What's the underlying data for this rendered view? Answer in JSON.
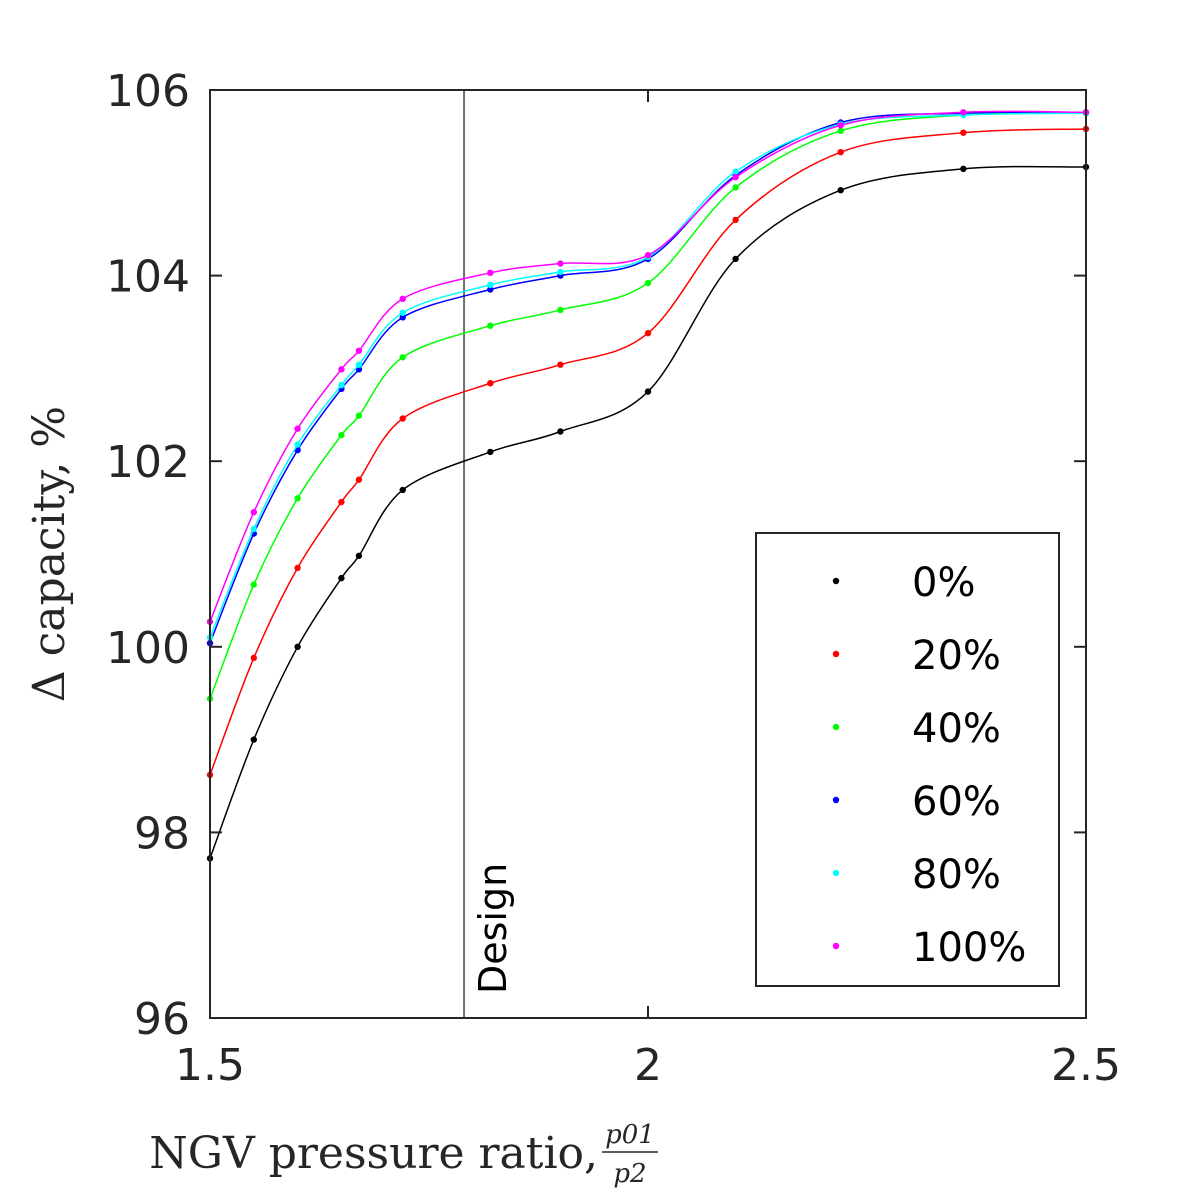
{
  "chart_data": {
    "type": "line",
    "title": "",
    "xlabel": "NGV pressure ratio,",
    "xlabel_fraction": {
      "numerator": "p01",
      "denominator": "p2"
    },
    "ylabel": "Δ capacity, %",
    "xlim": [
      1.5,
      2.5
    ],
    "ylim": [
      96,
      106
    ],
    "x_ticks": [
      "1.5",
      "2",
      "2.5"
    ],
    "y_ticks": [
      "96",
      "98",
      "100",
      "102",
      "104",
      "106"
    ],
    "grid": false,
    "legend_position": "bottom-right",
    "annotation": {
      "label": "Design",
      "x": 1.79
    },
    "x": [
      1.5,
      1.55,
      1.6,
      1.65,
      1.67,
      1.72,
      1.82,
      1.9,
      2.0,
      2.1,
      2.22,
      2.36,
      2.5
    ],
    "series": [
      {
        "name": "0%",
        "color": "#000000",
        "values": [
          97.72,
          99.0,
          100.0,
          100.74,
          100.98,
          101.69,
          102.1,
          102.32,
          102.75,
          104.18,
          104.92,
          105.15,
          105.17
        ]
      },
      {
        "name": "20%",
        "color": "#ff0000",
        "values": [
          98.62,
          99.88,
          100.85,
          101.56,
          101.8,
          102.46,
          102.84,
          103.04,
          103.38,
          104.6,
          105.33,
          105.54,
          105.58
        ]
      },
      {
        "name": "40%",
        "color": "#00ff00",
        "values": [
          99.44,
          100.67,
          101.6,
          102.28,
          102.49,
          103.12,
          103.46,
          103.63,
          103.92,
          104.95,
          105.56,
          105.73,
          105.75
        ]
      },
      {
        "name": "60%",
        "color": "#0000ff",
        "values": [
          100.04,
          101.22,
          102.12,
          102.78,
          102.99,
          103.55,
          103.85,
          104.0,
          104.18,
          105.08,
          105.65,
          105.75,
          105.76
        ]
      },
      {
        "name": "80%",
        "color": "#00ffff",
        "values": [
          100.1,
          101.27,
          102.18,
          102.82,
          103.04,
          103.6,
          103.9,
          104.04,
          104.2,
          105.12,
          105.63,
          105.73,
          105.75
        ]
      },
      {
        "name": "100%",
        "color": "#ff00ff",
        "values": [
          100.27,
          101.45,
          102.35,
          102.99,
          103.19,
          103.75,
          104.03,
          104.13,
          104.22,
          105.06,
          105.62,
          105.76,
          105.76
        ]
      }
    ]
  }
}
